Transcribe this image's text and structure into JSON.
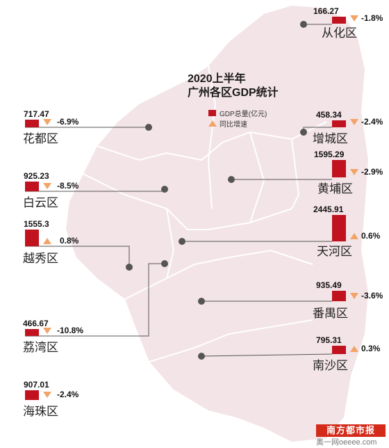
{
  "title_line1": "2020上半年",
  "title_line2": "广州各区GDP统计",
  "legend": {
    "gdp": "GDP总量(亿元)",
    "growth": "同比增速"
  },
  "colors": {
    "bar": "#c0121f",
    "triangle": "#f2a468",
    "map": "#f3e4e7",
    "leader": "#555555"
  },
  "chart_data": {
    "type": "bar",
    "title": "2020上半年 广州各区GDP统计",
    "categories": [
      "从化区",
      "花都区",
      "增城区",
      "黄埔区",
      "白云区",
      "越秀区",
      "天河区",
      "荔湾区",
      "番禺区",
      "南沙区",
      "海珠区"
    ],
    "series": [
      {
        "name": "GDP总量(亿元)",
        "values": [
          166.27,
          717.47,
          458.34,
          1595.29,
          925.23,
          1555.3,
          2445.91,
          466.67,
          935.49,
          795.31,
          907.01
        ]
      },
      {
        "name": "同比增速",
        "values": [
          -1.8,
          -6.9,
          -2.4,
          -2.9,
          -8.5,
          0.8,
          0.6,
          -10.8,
          -3.6,
          0.3,
          -2.4
        ]
      }
    ],
    "legend": "top-center"
  },
  "districts": [
    {
      "name": "从化区",
      "value": "166.27",
      "growth": "-1.8%",
      "dir": "down"
    },
    {
      "name": "花都区",
      "value": "717.47",
      "growth": "-6.9%",
      "dir": "down"
    },
    {
      "name": "增城区",
      "value": "458.34",
      "growth": "-2.4%",
      "dir": "down"
    },
    {
      "name": "黄埔区",
      "value": "1595.29",
      "growth": "-2.9%",
      "dir": "down"
    },
    {
      "name": "白云区",
      "value": "925.23",
      "growth": "-8.5%",
      "dir": "down"
    },
    {
      "name": "越秀区",
      "value": "1555.3",
      "growth": "0.8%",
      "dir": "up"
    },
    {
      "name": "天河区",
      "value": "2445.91",
      "growth": "0.6%",
      "dir": "up"
    },
    {
      "name": "荔湾区",
      "value": "466.67",
      "growth": "-10.8%",
      "dir": "down"
    },
    {
      "name": "番禺区",
      "value": "935.49",
      "growth": "-3.6%",
      "dir": "down"
    },
    {
      "name": "南沙区",
      "value": "795.31",
      "growth": "0.3%",
      "dir": "up"
    },
    {
      "name": "海珠区",
      "value": "907.01",
      "growth": "-2.4%",
      "dir": "down"
    }
  ],
  "logo": "南方都市报",
  "watermark": "奥一网oeeee.com"
}
